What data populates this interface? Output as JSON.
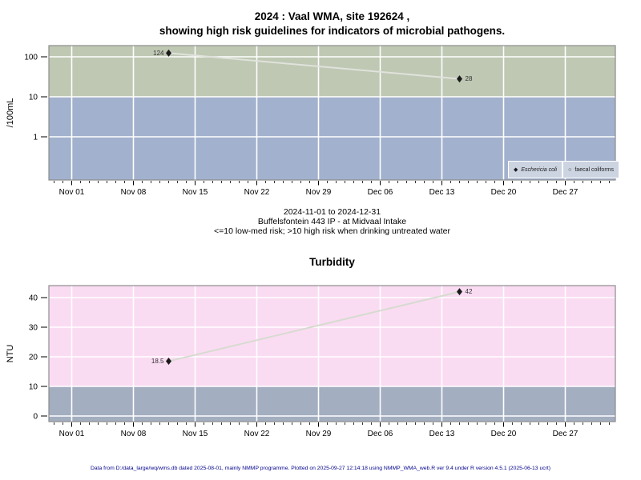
{
  "header": {
    "title_line1": "2024 : Vaal WMA, site 192624 ,",
    "title_line2": "showing high risk guidelines for indicators of microbial pathogens."
  },
  "caption": {
    "line1": "2024-11-01 to 2024-12-31",
    "line2": "Buffelsfontein 443 IP - at Midvaal Intake",
    "line3": "<=10 low-med risk; >10 high risk when drinking untreated water"
  },
  "legend": {
    "items": [
      {
        "label": "Eschericia coli",
        "marker_icon": "filled-diamond-icon",
        "italic": true
      },
      {
        "label": "faecal coliforms",
        "marker_icon": "open-circle-icon",
        "italic": false
      }
    ]
  },
  "footer": {
    "text": "Data from D:/data_large/wq/wms.db dated 2025-08-01, mainly NMMP programme. Plotted on 2025-09-27 12:14:18 using NMMP_WMA_web.R ver 9.4 under R version 4.5.1 (2025-06-13 ucrt)"
  },
  "chart_data": [
    {
      "name": "microbial-pathogens",
      "type": "scatter",
      "title": "2024 : Vaal WMA, site 192624 , showing high risk guidelines for indicators of microbial pathogens.",
      "ylabel": "/100mL",
      "y_scale": "log",
      "grid": "white",
      "x_range": [
        "2024-11-01",
        "2024-12-31"
      ],
      "threshold": {
        "value": 10,
        "meaning": "<=10 low-med risk; >10 high risk when drinking untreated water"
      },
      "yticks": [
        {
          "value": 100,
          "label": "100"
        },
        {
          "value": 10,
          "label": "10"
        },
        {
          "value": 1,
          "label": "1"
        }
      ],
      "xticks": [
        {
          "date": "2024-11-01",
          "label": "Nov 01"
        },
        {
          "date": "2024-11-08",
          "label": "Nov 08"
        },
        {
          "date": "2024-11-15",
          "label": "Nov 15"
        },
        {
          "date": "2024-11-22",
          "label": "Nov 22"
        },
        {
          "date": "2024-11-29",
          "label": "Nov 29"
        },
        {
          "date": "2024-12-06",
          "label": "Dec 06"
        },
        {
          "date": "2024-12-13",
          "label": "Dec 13"
        },
        {
          "date": "2024-12-20",
          "label": "Dec 20"
        },
        {
          "date": "2024-12-27",
          "label": "Dec 27"
        }
      ],
      "regions": [
        {
          "name": "high-risk-zone",
          "from_value": 10,
          "to_value": null,
          "color": "#bfc8b3"
        },
        {
          "name": "low-med-risk-zone",
          "from_value": null,
          "to_value": 10,
          "color": "#a2b1cd"
        }
      ],
      "line_color": "#e0e2dc",
      "marker_color": "#1a1a1a",
      "label_color": "#333333",
      "series": [
        {
          "name": "Eschericia coli",
          "marker": "filled-diamond",
          "points": [
            {
              "date": "2024-11-12",
              "value": 124,
              "label": "124",
              "label_side": "left"
            },
            {
              "date": "2024-12-15",
              "value": 28,
              "label": "28",
              "label_side": "right"
            }
          ]
        },
        {
          "name": "faecal coliforms",
          "marker": "open-circle",
          "points": []
        }
      ]
    },
    {
      "name": "turbidity",
      "type": "scatter",
      "title": "Turbidity",
      "ylabel": "NTU",
      "y_scale": "linear",
      "grid": "white",
      "x_range": [
        "2024-11-01",
        "2024-12-31"
      ],
      "threshold": {
        "value": 10,
        "meaning": "<=10 low-med risk; >10 high risk"
      },
      "yticks": [
        {
          "value": 40,
          "label": "40"
        },
        {
          "value": 30,
          "label": "30"
        },
        {
          "value": 20,
          "label": "20"
        },
        {
          "value": 10,
          "label": "10"
        },
        {
          "value": 0,
          "label": "0"
        }
      ],
      "xticks": [
        {
          "date": "2024-11-01",
          "label": "Nov 01"
        },
        {
          "date": "2024-11-08",
          "label": "Nov 08"
        },
        {
          "date": "2024-11-15",
          "label": "Nov 15"
        },
        {
          "date": "2024-11-22",
          "label": "Nov 22"
        },
        {
          "date": "2024-11-29",
          "label": "Nov 29"
        },
        {
          "date": "2024-12-06",
          "label": "Dec 06"
        },
        {
          "date": "2024-12-13",
          "label": "Dec 13"
        },
        {
          "date": "2024-12-20",
          "label": "Dec 20"
        },
        {
          "date": "2024-12-27",
          "label": "Dec 27"
        }
      ],
      "regions": [
        {
          "name": "above-10-high-risk-zone",
          "from_value": 10,
          "to_value": null,
          "color": "#fadcf2"
        },
        {
          "name": "below-10-low-risk-zone",
          "from_value": null,
          "to_value": 10,
          "color": "#a3aec0"
        }
      ],
      "line_color": "#d6dbd0",
      "marker_color": "#1a1a1a",
      "label_color": "#333333",
      "series": [
        {
          "name": "Turbidity",
          "marker": "filled-diamond",
          "points": [
            {
              "date": "2024-11-12",
              "value": 18.5,
              "label": "18.5",
              "label_side": "left"
            },
            {
              "date": "2024-12-15",
              "value": 42,
              "label": "42",
              "label_side": "right"
            }
          ]
        }
      ]
    }
  ]
}
